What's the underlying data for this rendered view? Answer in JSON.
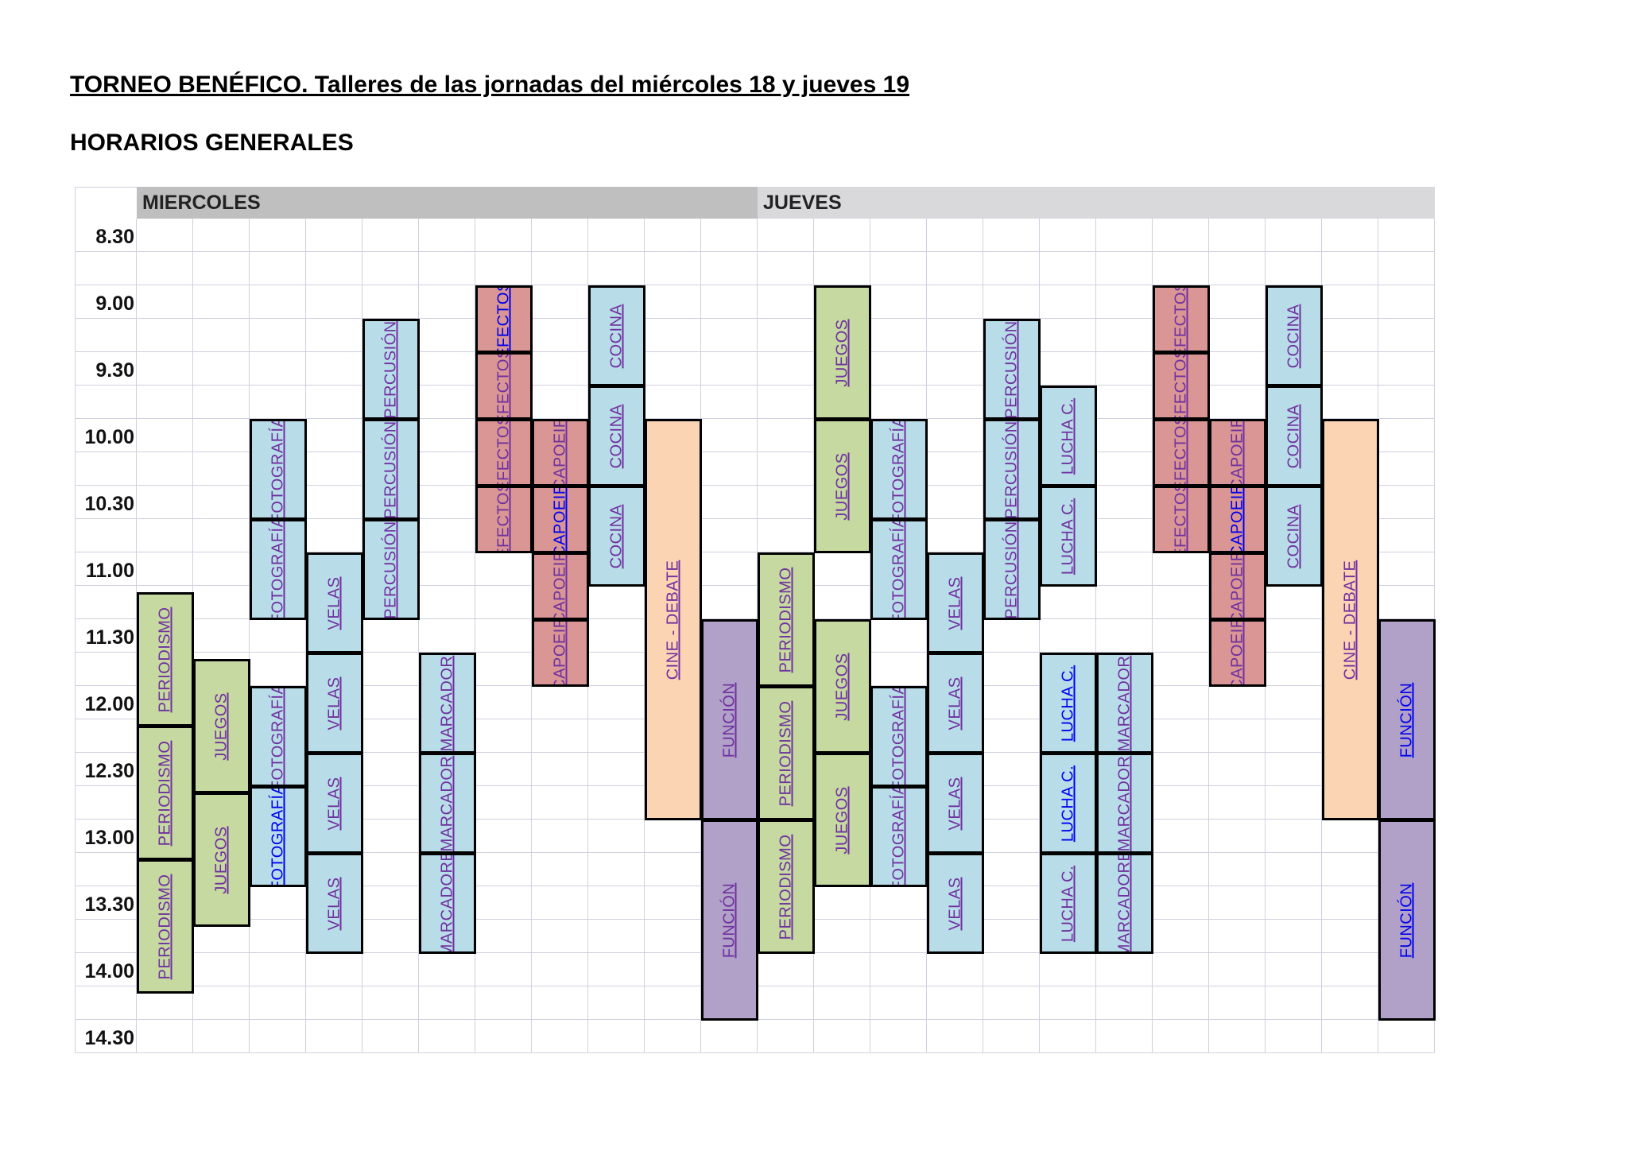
{
  "header": {
    "title": "TORNEO BENÉFICO. Talleres de las jornadas del miércoles 18 y jueves 19",
    "subtitle": "HORARIOS GENERALES"
  },
  "schedule": {
    "days": [
      {
        "label": "MIERCOLES",
        "color": "#bfbfbf"
      },
      {
        "label": "JUEVES",
        "color": "#d9d9dc"
      }
    ],
    "times": [
      "8.30",
      "9.00",
      "9.30",
      "10.00",
      "10.30",
      "11.00",
      "11.30",
      "12.00",
      "12.30",
      "13.00",
      "13.30",
      "14.00",
      "14.30"
    ],
    "colors": {
      "blue": "#b8dde8",
      "green": "#c5d9a0",
      "red": "#d99694",
      "peach": "#fbd4b4",
      "purple": "#b1a0c7",
      "link_purple": "#7030a0",
      "link_blue": "#0000ee"
    },
    "blocks": [
      {
        "day": 0,
        "col": 0,
        "start": 5.6,
        "end": 7.6,
        "label": "PERIODISMO",
        "color": "green",
        "link": "purple"
      },
      {
        "day": 0,
        "col": 0,
        "start": 7.6,
        "end": 9.6,
        "label": "PERIODISMO",
        "color": "green",
        "link": "purple"
      },
      {
        "day": 0,
        "col": 0,
        "start": 9.6,
        "end": 11.6,
        "label": "PERIODISMO",
        "color": "green",
        "link": "purple"
      },
      {
        "day": 0,
        "col": 1,
        "start": 6.6,
        "end": 8.6,
        "label": "JUEGOS",
        "color": "green",
        "link": "purple"
      },
      {
        "day": 0,
        "col": 1,
        "start": 8.6,
        "end": 10.6,
        "label": "JUEGOS",
        "color": "green",
        "link": "purple"
      },
      {
        "day": 0,
        "col": 2,
        "start": 3.0,
        "end": 4.5,
        "label": "FOTOGRAFÍA",
        "color": "blue",
        "link": "purple"
      },
      {
        "day": 0,
        "col": 2,
        "start": 4.5,
        "end": 6.0,
        "label": "FOTOGRAFÍA",
        "color": "blue",
        "link": "purple"
      },
      {
        "day": 0,
        "col": 2,
        "start": 7.0,
        "end": 8.5,
        "label": "FOTOGRAFÍA",
        "color": "blue",
        "link": "purple"
      },
      {
        "day": 0,
        "col": 2,
        "start": 8.5,
        "end": 10.0,
        "label": "FOTOGRAFÍA",
        "color": "blue",
        "link": "blue"
      },
      {
        "day": 0,
        "col": 3,
        "start": 5.0,
        "end": 6.5,
        "label": "VELAS",
        "color": "blue",
        "link": "purple"
      },
      {
        "day": 0,
        "col": 3,
        "start": 6.5,
        "end": 8.0,
        "label": "VELAS",
        "color": "blue",
        "link": "purple"
      },
      {
        "day": 0,
        "col": 3,
        "start": 8.0,
        "end": 9.5,
        "label": "VELAS",
        "color": "blue",
        "link": "purple"
      },
      {
        "day": 0,
        "col": 3,
        "start": 9.5,
        "end": 11.0,
        "label": "VELAS",
        "color": "blue",
        "link": "purple"
      },
      {
        "day": 0,
        "col": 4,
        "start": 1.5,
        "end": 3.0,
        "label": "PERCUSIÓN",
        "color": "blue",
        "link": "purple"
      },
      {
        "day": 0,
        "col": 4,
        "start": 3.0,
        "end": 4.5,
        "label": "PERCUSIÓN",
        "color": "blue",
        "link": "purple"
      },
      {
        "day": 0,
        "col": 4,
        "start": 4.5,
        "end": 6.0,
        "label": "PERCUSIÓN",
        "color": "blue",
        "link": "purple"
      },
      {
        "day": 0,
        "col": 5,
        "start": 6.5,
        "end": 8.0,
        "label": "MARCADOR",
        "color": "blue",
        "link": "purple"
      },
      {
        "day": 0,
        "col": 5,
        "start": 8.0,
        "end": 9.5,
        "label": "MARCADOR",
        "color": "blue",
        "link": "purple"
      },
      {
        "day": 0,
        "col": 5,
        "start": 9.5,
        "end": 11.0,
        "label": "MARCADORE",
        "color": "blue",
        "link": "purple"
      },
      {
        "day": 0,
        "col": 6,
        "start": 1.0,
        "end": 2.0,
        "label": "EFECTOS",
        "color": "red",
        "link": "blue"
      },
      {
        "day": 0,
        "col": 6,
        "start": 2.0,
        "end": 3.0,
        "label": "EFECTOS",
        "color": "red",
        "link": "purple"
      },
      {
        "day": 0,
        "col": 6,
        "start": 3.0,
        "end": 4.0,
        "label": "EFECTOS",
        "color": "red",
        "link": "purple"
      },
      {
        "day": 0,
        "col": 6,
        "start": 4.0,
        "end": 5.0,
        "label": "EFECTOS",
        "color": "red",
        "link": "purple"
      },
      {
        "day": 0,
        "col": 7,
        "start": 3.0,
        "end": 4.0,
        "label": "CAPOEIR",
        "color": "red",
        "link": "purple"
      },
      {
        "day": 0,
        "col": 7,
        "start": 4.0,
        "end": 5.0,
        "label": "CAPOEIR",
        "color": "red",
        "link": "blue"
      },
      {
        "day": 0,
        "col": 7,
        "start": 5.0,
        "end": 6.0,
        "label": "CAPOEIR",
        "color": "red",
        "link": "purple"
      },
      {
        "day": 0,
        "col": 7,
        "start": 6.0,
        "end": 7.0,
        "label": "CAPOEIR",
        "color": "red",
        "link": "purple"
      },
      {
        "day": 0,
        "col": 8,
        "start": 1.0,
        "end": 2.5,
        "label": "COCINA",
        "color": "blue",
        "link": "purple"
      },
      {
        "day": 0,
        "col": 8,
        "start": 2.5,
        "end": 4.0,
        "label": "COCINA",
        "color": "blue",
        "link": "purple"
      },
      {
        "day": 0,
        "col": 8,
        "start": 4.0,
        "end": 5.5,
        "label": "COCINA",
        "color": "blue",
        "link": "purple"
      },
      {
        "day": 0,
        "col": 9,
        "start": 3.0,
        "end": 9.0,
        "label": "CINE - DEBATE",
        "color": "peach",
        "link": "purple"
      },
      {
        "day": 0,
        "col": 10,
        "start": 6.0,
        "end": 9.0,
        "label": "FUNCIÓN",
        "color": "purple",
        "link": "purple"
      },
      {
        "day": 0,
        "col": 10,
        "start": 9.0,
        "end": 12.0,
        "label": "FUNCIÓN",
        "color": "purple",
        "link": "purple"
      },
      {
        "day": 1,
        "col": 0,
        "start": 5.0,
        "end": 7.0,
        "label": "PERIODISMO",
        "color": "green",
        "link": "purple"
      },
      {
        "day": 1,
        "col": 0,
        "start": 7.0,
        "end": 9.0,
        "label": "PERIODISMO",
        "color": "green",
        "link": "purple"
      },
      {
        "day": 1,
        "col": 0,
        "start": 9.0,
        "end": 11.0,
        "label": "PERIODISMO",
        "color": "green",
        "link": "purple"
      },
      {
        "day": 1,
        "col": 1,
        "start": 1.0,
        "end": 3.0,
        "label": "JUEGOS",
        "color": "green",
        "link": "purple"
      },
      {
        "day": 1,
        "col": 1,
        "start": 3.0,
        "end": 5.0,
        "label": "JUEGOS",
        "color": "green",
        "link": "purple"
      },
      {
        "day": 1,
        "col": 1,
        "start": 6.0,
        "end": 8.0,
        "label": "JUEGOS",
        "color": "green",
        "link": "purple"
      },
      {
        "day": 1,
        "col": 1,
        "start": 8.0,
        "end": 10.0,
        "label": "JUEGOS",
        "color": "green",
        "link": "purple"
      },
      {
        "day": 1,
        "col": 2,
        "start": 3.0,
        "end": 4.5,
        "label": "FOTOGRAFÍA",
        "color": "blue",
        "link": "purple"
      },
      {
        "day": 1,
        "col": 2,
        "start": 4.5,
        "end": 6.0,
        "label": "FOTOGRAFÍA",
        "color": "blue",
        "link": "purple"
      },
      {
        "day": 1,
        "col": 2,
        "start": 7.0,
        "end": 8.5,
        "label": "FOTOGRAFÍA",
        "color": "blue",
        "link": "purple"
      },
      {
        "day": 1,
        "col": 2,
        "start": 8.5,
        "end": 10.0,
        "label": "FOTOGRAFÍA",
        "color": "blue",
        "link": "purple"
      },
      {
        "day": 1,
        "col": 3,
        "start": 5.0,
        "end": 6.5,
        "label": "VELAS",
        "color": "blue",
        "link": "purple"
      },
      {
        "day": 1,
        "col": 3,
        "start": 6.5,
        "end": 8.0,
        "label": "VELAS",
        "color": "blue",
        "link": "purple"
      },
      {
        "day": 1,
        "col": 3,
        "start": 8.0,
        "end": 9.5,
        "label": "VELAS",
        "color": "blue",
        "link": "purple"
      },
      {
        "day": 1,
        "col": 3,
        "start": 9.5,
        "end": 11.0,
        "label": "VELAS",
        "color": "blue",
        "link": "purple"
      },
      {
        "day": 1,
        "col": 4,
        "start": 1.5,
        "end": 3.0,
        "label": "PERCUSIÓN",
        "color": "blue",
        "link": "purple"
      },
      {
        "day": 1,
        "col": 4,
        "start": 3.0,
        "end": 4.5,
        "label": "PERCUSIÓN",
        "color": "blue",
        "link": "purple"
      },
      {
        "day": 1,
        "col": 4,
        "start": 4.5,
        "end": 6.0,
        "label": "PERCUSIÓN",
        "color": "blue",
        "link": "purple"
      },
      {
        "day": 1,
        "col": 5,
        "start": 2.5,
        "end": 4.0,
        "label": "LUCHA C.",
        "color": "blue",
        "link": "purple"
      },
      {
        "day": 1,
        "col": 5,
        "start": 4.0,
        "end": 5.5,
        "label": "LUCHA C.",
        "color": "blue",
        "link": "purple"
      },
      {
        "day": 1,
        "col": 5,
        "start": 6.5,
        "end": 8.0,
        "label": "LUCHA C.",
        "color": "blue",
        "link": "blue"
      },
      {
        "day": 1,
        "col": 5,
        "start": 8.0,
        "end": 9.5,
        "label": "LUCHA C.",
        "color": "blue",
        "link": "blue"
      },
      {
        "day": 1,
        "col": 5,
        "start": 9.5,
        "end": 11.0,
        "label": "LUCHA C.",
        "color": "blue",
        "link": "purple"
      },
      {
        "day": 1,
        "col": 6,
        "start": 6.5,
        "end": 8.0,
        "label": "MARCADOR",
        "color": "blue",
        "link": "purple"
      },
      {
        "day": 1,
        "col": 6,
        "start": 8.0,
        "end": 9.5,
        "label": "MARCADOR",
        "color": "blue",
        "link": "purple"
      },
      {
        "day": 1,
        "col": 6,
        "start": 9.5,
        "end": 11.0,
        "label": "MARCADORE",
        "color": "blue",
        "link": "purple"
      },
      {
        "day": 1,
        "col": 7,
        "start": 1.0,
        "end": 2.0,
        "label": "EFECTOS",
        "color": "red",
        "link": "purple"
      },
      {
        "day": 1,
        "col": 7,
        "start": 2.0,
        "end": 3.0,
        "label": "EFECTOS",
        "color": "red",
        "link": "purple"
      },
      {
        "day": 1,
        "col": 7,
        "start": 3.0,
        "end": 4.0,
        "label": "EFECTOS",
        "color": "red",
        "link": "purple"
      },
      {
        "day": 1,
        "col": 7,
        "start": 4.0,
        "end": 5.0,
        "label": "EFECTOS",
        "color": "red",
        "link": "purple"
      },
      {
        "day": 1,
        "col": 8,
        "start": 3.0,
        "end": 4.0,
        "label": "CAPOEIR",
        "color": "red",
        "link": "purple"
      },
      {
        "day": 1,
        "col": 8,
        "start": 4.0,
        "end": 5.0,
        "label": "CAPOEIR",
        "color": "red",
        "link": "blue"
      },
      {
        "day": 1,
        "col": 8,
        "start": 5.0,
        "end": 6.0,
        "label": "CAPOEIR",
        "color": "red",
        "link": "purple"
      },
      {
        "day": 1,
        "col": 8,
        "start": 6.0,
        "end": 7.0,
        "label": "CAPOEIR",
        "color": "red",
        "link": "purple"
      },
      {
        "day": 1,
        "col": 9,
        "start": 1.0,
        "end": 2.5,
        "label": "COCINA",
        "color": "blue",
        "link": "purple"
      },
      {
        "day": 1,
        "col": 9,
        "start": 2.5,
        "end": 4.0,
        "label": "COCINA",
        "color": "blue",
        "link": "purple"
      },
      {
        "day": 1,
        "col": 9,
        "start": 4.0,
        "end": 5.5,
        "label": "COCINA",
        "color": "blue",
        "link": "purple"
      },
      {
        "day": 1,
        "col": 10,
        "start": 3.0,
        "end": 9.0,
        "label": "CINE - DEBATE",
        "color": "peach",
        "link": "purple"
      },
      {
        "day": 1,
        "col": 11,
        "start": 6.0,
        "end": 9.0,
        "label": "FUNCIÓN",
        "color": "purple",
        "link": "blue"
      },
      {
        "day": 1,
        "col": 11,
        "start": 9.0,
        "end": 12.0,
        "label": "FUNCIÓN",
        "color": "purple",
        "link": "blue"
      }
    ]
  }
}
